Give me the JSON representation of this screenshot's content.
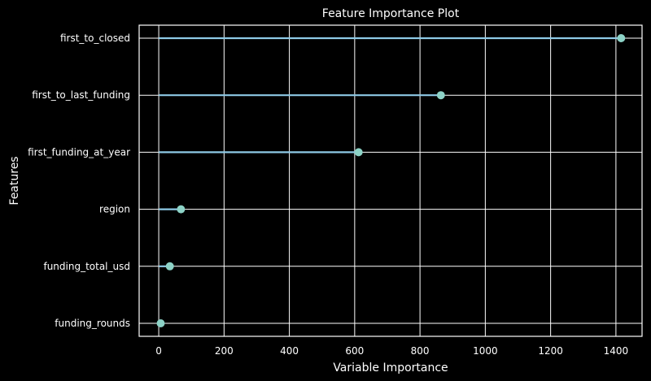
{
  "chart_data": {
    "type": "lollipop",
    "title": "Feature Importance Plot",
    "xlabel": "Variable Importance",
    "ylabel": "Features",
    "xlim": [
      -60,
      1480
    ],
    "xticks": [
      0,
      200,
      400,
      600,
      800,
      1000,
      1200,
      1400
    ],
    "grid": true,
    "categories": [
      "first_to_closed",
      "first_to_last_funding",
      "first_funding_at_year",
      "region",
      "funding_total_usd",
      "funding_rounds"
    ],
    "values": [
      1416,
      864,
      612,
      68,
      34,
      6
    ],
    "colors": {
      "background": "#000000",
      "grid": "#ffffff",
      "stem": "#8ecae6",
      "marker": "#8dd3c7",
      "text": "#ffffff"
    }
  }
}
